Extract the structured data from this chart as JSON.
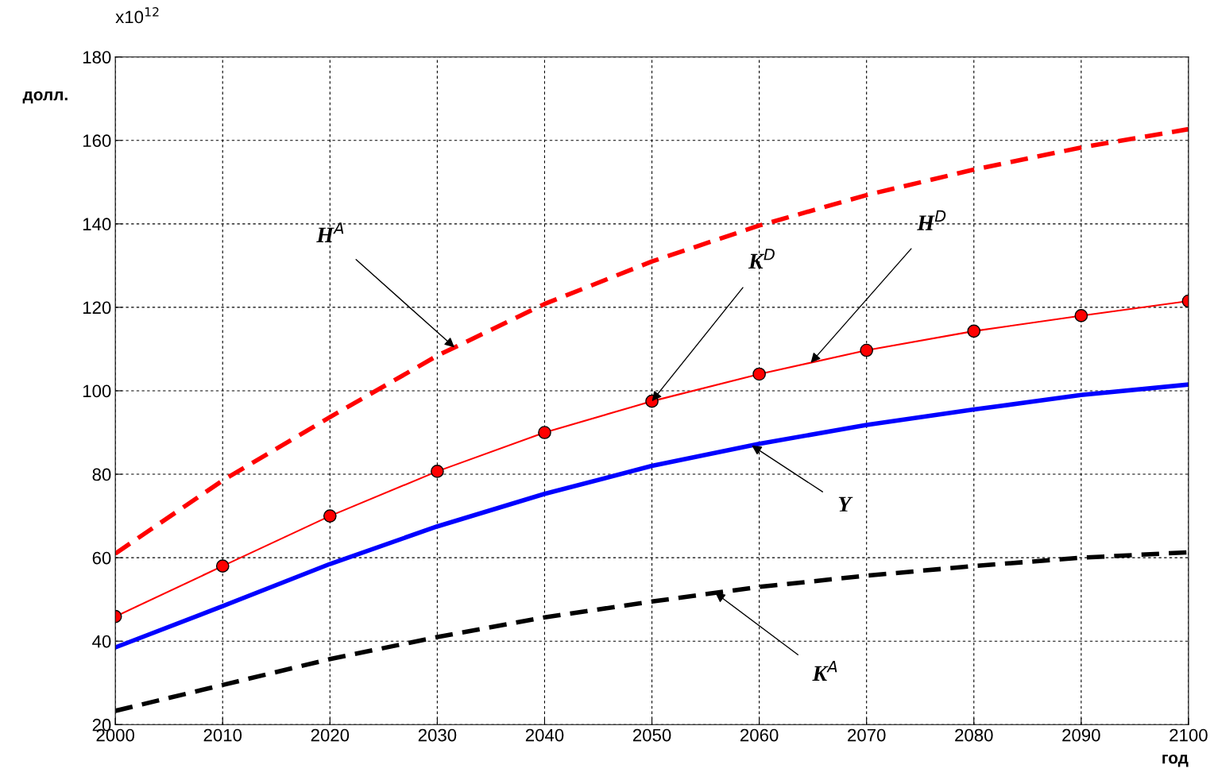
{
  "chart_data": {
    "type": "line",
    "xlabel": "год",
    "ylabel": "долл.",
    "grid": true,
    "x": [
      2000,
      2010,
      2020,
      2030,
      2040,
      2050,
      2060,
      2070,
      2080,
      2090,
      2100
    ],
    "xlim": [
      2000,
      2100
    ],
    "xticks": [
      2000,
      2010,
      2020,
      2030,
      2040,
      2050,
      2060,
      2070,
      2080,
      2090,
      2100
    ],
    "ylim": [
      20,
      180
    ],
    "yticks": [
      20,
      40,
      60,
      80,
      100,
      120,
      140,
      160,
      180
    ],
    "series": [
      {
        "color": "#ff0000",
        "line_style": "dashed",
        "marker": "none",
        "values": [
          61,
          78.5,
          93.7,
          108.4,
          120.8,
          131,
          139.6,
          146.9,
          153,
          158.3,
          162.7
        ]
      },
      {
        "color": "#ff0000",
        "line_style": "solid",
        "marker": "circle",
        "values": [
          45.9,
          58,
          70,
          80.7,
          90,
          97.5,
          104,
          109.7,
          114.3,
          118,
          121.5
        ]
      },
      {
        "color": "#0000ff",
        "line_style": "solid",
        "marker": "none",
        "values": [
          38.5,
          48.4,
          58.5,
          67.5,
          75.3,
          82,
          87.3,
          91.8,
          95.5,
          99,
          101.5
        ]
      },
      {
        "color": "#000000",
        "line_style": "dashed",
        "marker": "none",
        "values": [
          23.3,
          29.5,
          35.7,
          41,
          45.7,
          49.5,
          53,
          55.7,
          58,
          60,
          61.3
        ]
      }
    ],
    "annotations": [
      "x10$^{12}$",
      {
        "text": "H$^{A}$",
        "x": 2031.6,
        "y": 110.4
      },
      {
        "text": "K$^{D}$",
        "x": 2050,
        "y": 97.5
      },
      {
        "text": "H$^{D}$",
        "x": 2064.8,
        "y": 106.7
      },
      {
        "text": "Y",
        "x": 2059.3,
        "y": 86.9
      },
      {
        "text": "K$^{A}$",
        "x": 2055.9,
        "y": 51.6
      }
    ]
  }
}
